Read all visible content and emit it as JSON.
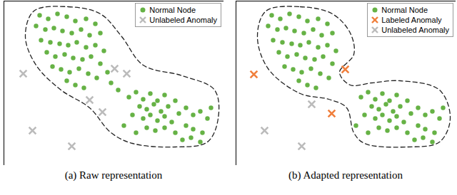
{
  "chart_data": [
    {
      "type": "scatter",
      "title": "(a) Raw representation",
      "xlim": [
        0,
        308
      ],
      "ylim": [
        231,
        0
      ],
      "tick_labels": false,
      "legend": "top-right",
      "boundary": [
        [
          42,
          14
        ],
        [
          90,
          8
        ],
        [
          135,
          18
        ],
        [
          165,
          50
        ],
        [
          195,
          90
        ],
        [
          250,
          105
        ],
        [
          295,
          125
        ],
        [
          300,
          165
        ],
        [
          285,
          198
        ],
        [
          240,
          205
        ],
        [
          180,
          200
        ],
        [
          150,
          185
        ],
        [
          120,
          150
        ],
        [
          80,
          125
        ],
        [
          45,
          90
        ],
        [
          30,
          50
        ]
      ],
      "series": [
        {
          "name": "Normal Node",
          "color": "#66b245",
          "marker": "circle",
          "values": [
            [
              50,
              20
            ],
            [
              62,
              25
            ],
            [
              75,
              18
            ],
            [
              88,
              22
            ],
            [
              100,
              28
            ],
            [
              115,
              25
            ],
            [
              128,
              32
            ],
            [
              45,
              35
            ],
            [
              58,
              40
            ],
            [
              70,
              38
            ],
            [
              82,
              42
            ],
            [
              95,
              45
            ],
            [
              108,
              40
            ],
            [
              120,
              48
            ],
            [
              135,
              45
            ],
            [
              52,
              55
            ],
            [
              65,
              58
            ],
            [
              78,
              60
            ],
            [
              90,
              62
            ],
            [
              102,
              58
            ],
            [
              115,
              65
            ],
            [
              128,
              62
            ],
            [
              140,
              70
            ],
            [
              60,
              72
            ],
            [
              72,
              78
            ],
            [
              85,
              75
            ],
            [
              97,
              80
            ],
            [
              110,
              82
            ],
            [
              122,
              78
            ],
            [
              135,
              88
            ],
            [
              68,
              92
            ],
            [
              80,
              96
            ],
            [
              92,
              100
            ],
            [
              105,
              95
            ],
            [
              118,
              102
            ],
            [
              130,
              108
            ],
            [
              88,
              112
            ],
            [
              100,
              118
            ],
            [
              112,
              122
            ],
            [
              145,
              100
            ],
            [
              150,
              115
            ],
            [
              160,
              125
            ],
            [
              175,
              135
            ],
            [
              185,
              128
            ],
            [
              195,
              138
            ],
            [
              205,
              130
            ],
            [
              215,
              140
            ],
            [
              225,
              132
            ],
            [
              190,
              148
            ],
            [
              200,
              152
            ],
            [
              210,
              145
            ],
            [
              220,
              155
            ],
            [
              230,
              148
            ],
            [
              240,
              140
            ],
            [
              180,
              160
            ],
            [
              195,
              165
            ],
            [
              205,
              160
            ],
            [
              215,
              168
            ],
            [
              225,
              162
            ],
            [
              235,
              170
            ],
            [
              245,
              158
            ],
            [
              255,
              150
            ],
            [
              265,
              160
            ],
            [
              275,
              155
            ],
            [
              285,
              165
            ],
            [
              290,
              150
            ],
            [
              200,
              178
            ],
            [
              212,
              182
            ],
            [
              225,
              178
            ],
            [
              240,
              185
            ],
            [
              255,
              175
            ],
            [
              265,
              180
            ],
            [
              278,
              185
            ],
            [
              250,
              195
            ],
            [
              262,
              192
            ],
            [
              275,
              198
            ],
            [
              168,
              175
            ],
            [
              185,
              185
            ]
          ]
        },
        {
          "name": "Unlabeled Anomaly",
          "color": "#bbbbbb",
          "marker": "x",
          "values": [
            [
              27,
              102
            ],
            [
              155,
              95
            ],
            [
              172,
              102
            ],
            [
              120,
              139
            ],
            [
              138,
              156
            ],
            [
              40,
              182
            ],
            [
              95,
              204
            ]
          ]
        }
      ]
    },
    {
      "type": "scatter",
      "title": "(b) Adapted representation",
      "xlim": [
        0,
        308
      ],
      "ylim": [
        231,
        0
      ],
      "tick_labels": false,
      "legend": "top-right",
      "boundary": [
        [
          42,
          14
        ],
        [
          90,
          8
        ],
        [
          135,
          18
        ],
        [
          160,
          45
        ],
        [
          165,
          75
        ],
        [
          145,
          100
        ],
        [
          160,
          118
        ],
        [
          190,
          115
        ],
        [
          230,
          112
        ],
        [
          285,
          125
        ],
        [
          300,
          165
        ],
        [
          285,
          198
        ],
        [
          240,
          205
        ],
        [
          180,
          200
        ],
        [
          165,
          185
        ],
        [
          155,
          150
        ],
        [
          130,
          138
        ],
        [
          90,
          130
        ],
        [
          45,
          95
        ],
        [
          30,
          50
        ]
      ],
      "series": [
        {
          "name": "Normal Node",
          "color": "#66b245",
          "marker": "circle",
          "values": [
            [
              50,
              20
            ],
            [
              62,
              25
            ],
            [
              75,
              18
            ],
            [
              88,
              22
            ],
            [
              100,
              28
            ],
            [
              115,
              25
            ],
            [
              128,
              32
            ],
            [
              45,
              35
            ],
            [
              58,
              40
            ],
            [
              70,
              38
            ],
            [
              82,
              42
            ],
            [
              95,
              45
            ],
            [
              108,
              40
            ],
            [
              120,
              48
            ],
            [
              135,
              45
            ],
            [
              52,
              55
            ],
            [
              65,
              58
            ],
            [
              78,
              60
            ],
            [
              90,
              62
            ],
            [
              102,
              58
            ],
            [
              115,
              65
            ],
            [
              128,
              62
            ],
            [
              140,
              70
            ],
            [
              60,
              72
            ],
            [
              72,
              78
            ],
            [
              85,
              75
            ],
            [
              97,
              80
            ],
            [
              110,
              82
            ],
            [
              122,
              78
            ],
            [
              135,
              88
            ],
            [
              68,
              92
            ],
            [
              80,
              96
            ],
            [
              92,
              100
            ],
            [
              105,
              95
            ],
            [
              118,
              102
            ],
            [
              130,
              108
            ],
            [
              88,
              112
            ],
            [
              100,
              118
            ],
            [
              112,
              122
            ],
            [
              175,
              135
            ],
            [
              185,
              128
            ],
            [
              195,
              138
            ],
            [
              205,
              130
            ],
            [
              215,
              140
            ],
            [
              225,
              132
            ],
            [
              190,
              148
            ],
            [
              200,
              152
            ],
            [
              210,
              145
            ],
            [
              220,
              155
            ],
            [
              230,
              148
            ],
            [
              240,
              140
            ],
            [
              180,
              160
            ],
            [
              195,
              165
            ],
            [
              205,
              160
            ],
            [
              215,
              168
            ],
            [
              225,
              162
            ],
            [
              235,
              170
            ],
            [
              245,
              158
            ],
            [
              255,
              150
            ],
            [
              265,
              160
            ],
            [
              275,
              155
            ],
            [
              285,
              165
            ],
            [
              290,
              150
            ],
            [
              200,
              178
            ],
            [
              212,
              182
            ],
            [
              225,
              178
            ],
            [
              240,
              185
            ],
            [
              255,
              175
            ],
            [
              265,
              180
            ],
            [
              278,
              185
            ],
            [
              250,
              195
            ],
            [
              262,
              192
            ],
            [
              275,
              198
            ],
            [
              168,
              175
            ],
            [
              185,
              185
            ]
          ]
        },
        {
          "name": "Labeled Anomaly",
          "color": "#f07f3c",
          "marker": "x",
          "values": [
            [
              25,
              103
            ],
            [
              153,
              96
            ],
            [
              134,
              158
            ]
          ]
        },
        {
          "name": "Unlabeled Anomaly",
          "color": "#bbbbbb",
          "marker": "x",
          "values": [
            [
              106,
              145
            ],
            [
              40,
              182
            ],
            [
              92,
              204
            ]
          ]
        }
      ]
    }
  ]
}
